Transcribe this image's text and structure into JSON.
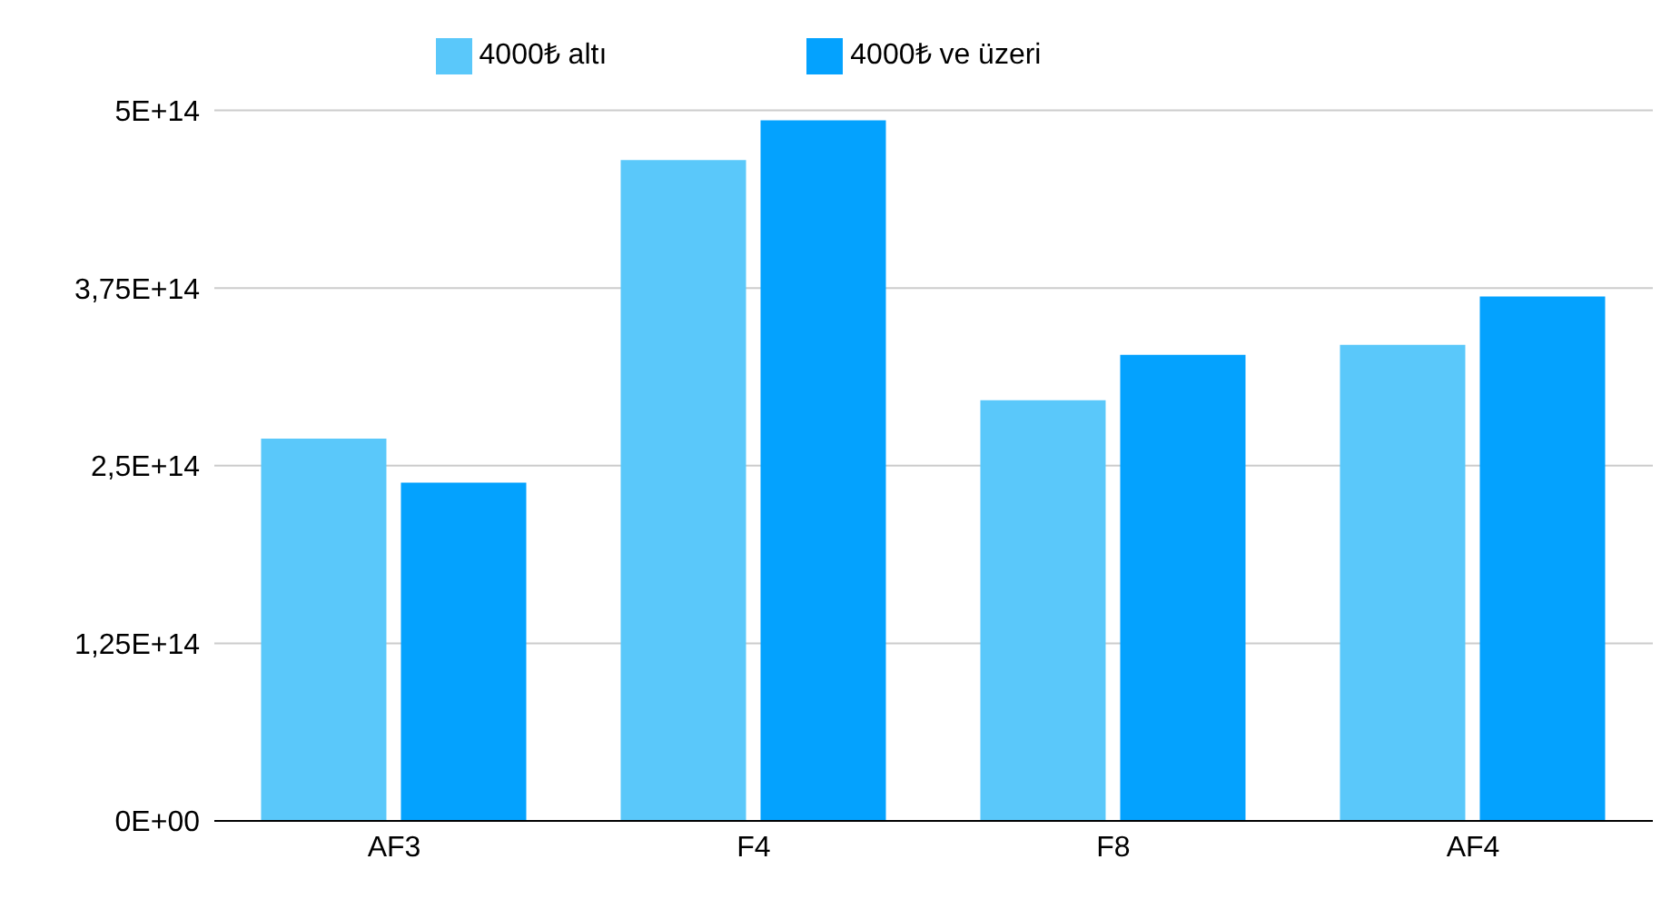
{
  "chart_data": {
    "type": "bar",
    "categories": [
      "AF3",
      "F4",
      "F8",
      "AF4"
    ],
    "series": [
      {
        "name": "4000₺ altı",
        "color": "#5ac8fa",
        "values": [
          269000000000000.0,
          465000000000000.0,
          296000000000000.0,
          335000000000000.0
        ]
      },
      {
        "name": "4000₺ ve üzeri",
        "color": "#04a2fe",
        "values": [
          238000000000000.0,
          493000000000000.0,
          328000000000000.0,
          369000000000000.0
        ]
      }
    ],
    "ylim": [
      0,
      500000000000000.0
    ],
    "yticks": [
      {
        "value": 0,
        "label": "0E+00"
      },
      {
        "value": 125000000000000.0,
        "label": "1,25E+14"
      },
      {
        "value": 250000000000000.0,
        "label": "2,5E+14"
      },
      {
        "value": 375000000000000.0,
        "label": "3,75E+14"
      },
      {
        "value": 500000000000000.0,
        "label": "5E+14"
      }
    ],
    "grid": "y",
    "legend": "top"
  }
}
